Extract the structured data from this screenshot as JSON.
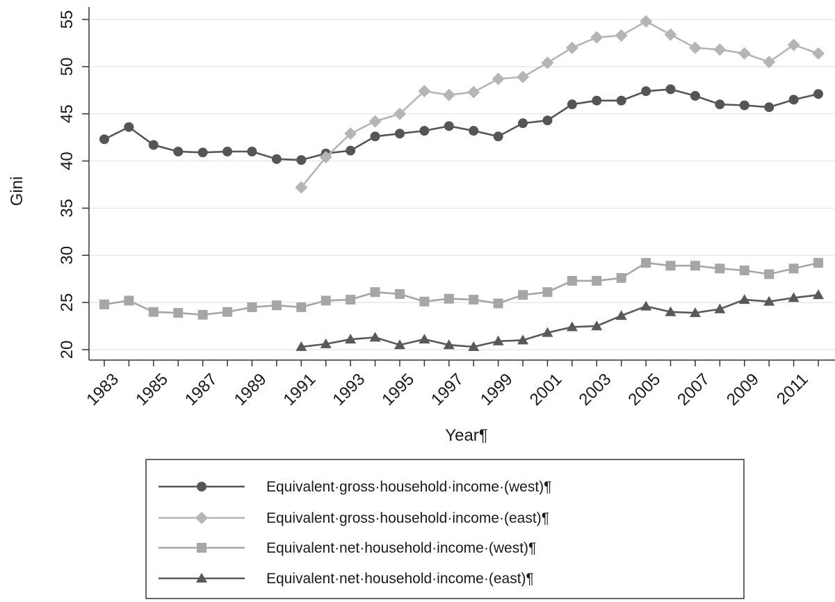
{
  "chart_data": {
    "type": "line",
    "title": "",
    "xlabel": "Year¶",
    "ylabel": "Gini",
    "xlim": [
      1983,
      2012
    ],
    "ylim": [
      19,
      56
    ],
    "x_ticks": [
      "1983",
      "1985",
      "1987",
      "1989",
      "1991",
      "1993",
      "1995",
      "1997",
      "1999",
      "2001",
      "2003",
      "2005",
      "2007",
      "2009",
      "2011"
    ],
    "y_ticks": [
      "20",
      "25",
      "30",
      "35",
      "40",
      "45",
      "50",
      "55"
    ],
    "grid": "horizontal",
    "legend_position": "bottom",
    "colors": {
      "gross_west": "#555555",
      "gross_east": "#b5b5b5",
      "net_west": "#a6a6a6",
      "net_east": "#595959"
    },
    "series": [
      {
        "name": "Equivalent·gross·household·income·(west)¶",
        "marker": "circle",
        "color": "#555555",
        "x": [
          1983,
          1984,
          1985,
          1986,
          1987,
          1988,
          1989,
          1990,
          1991,
          1992,
          1993,
          1994,
          1995,
          1996,
          1997,
          1998,
          1999,
          2000,
          2001,
          2002,
          2003,
          2004,
          2005,
          2006,
          2007,
          2008,
          2009,
          2010,
          2011,
          2012
        ],
        "y": [
          42.3,
          43.6,
          41.7,
          41.0,
          40.9,
          41.0,
          41.0,
          40.2,
          40.1,
          40.8,
          41.1,
          42.6,
          42.9,
          43.2,
          43.7,
          43.2,
          42.6,
          44.0,
          44.3,
          46.0,
          46.4,
          46.4,
          47.4,
          47.6,
          46.9,
          46.0,
          45.9,
          45.7,
          46.5,
          47.1
        ]
      },
      {
        "name": "Equivalent·gross·household·income·(east)¶",
        "marker": "diamond",
        "color": "#b5b5b5",
        "x": [
          1991,
          1992,
          1993,
          1994,
          1995,
          1996,
          1997,
          1998,
          1999,
          2000,
          2001,
          2002,
          2003,
          2004,
          2005,
          2006,
          2007,
          2008,
          2009,
          2010,
          2011,
          2012
        ],
        "y": [
          37.2,
          40.4,
          42.9,
          44.2,
          45.0,
          47.4,
          47.0,
          47.3,
          48.7,
          48.9,
          50.4,
          52.0,
          53.1,
          53.3,
          54.8,
          53.4,
          52.0,
          51.8,
          51.4,
          50.5,
          52.3,
          51.4
        ]
      },
      {
        "name": "Equivalent·net·household·income·(west)¶",
        "marker": "square",
        "color": "#a6a6a6",
        "x": [
          1983,
          1984,
          1985,
          1986,
          1987,
          1988,
          1989,
          1990,
          1991,
          1992,
          1993,
          1994,
          1995,
          1996,
          1997,
          1998,
          1999,
          2000,
          2001,
          2002,
          2003,
          2004,
          2005,
          2006,
          2007,
          2008,
          2009,
          2010,
          2011,
          2012
        ],
        "y": [
          24.8,
          25.2,
          24.0,
          23.9,
          23.7,
          24.0,
          24.5,
          24.7,
          24.5,
          25.2,
          25.3,
          26.1,
          25.9,
          25.1,
          25.4,
          25.3,
          24.9,
          25.8,
          26.1,
          27.3,
          27.3,
          27.6,
          29.2,
          28.9,
          28.9,
          28.6,
          28.4,
          28.0,
          28.6,
          29.2
        ]
      },
      {
        "name": "Equivalent·net·household·income·(east)¶",
        "marker": "triangle",
        "color": "#595959",
        "x": [
          1991,
          1992,
          1993,
          1994,
          1995,
          1996,
          1997,
          1998,
          1999,
          2000,
          2001,
          2002,
          2003,
          2004,
          2005,
          2006,
          2007,
          2008,
          2009,
          2010,
          2011,
          2012
        ],
        "y": [
          20.3,
          20.6,
          21.1,
          21.3,
          20.5,
          21.1,
          20.5,
          20.3,
          20.9,
          21.0,
          21.8,
          22.4,
          22.5,
          23.6,
          24.6,
          24.0,
          23.9,
          24.3,
          25.3,
          25.1,
          25.5,
          25.8
        ]
      }
    ]
  }
}
